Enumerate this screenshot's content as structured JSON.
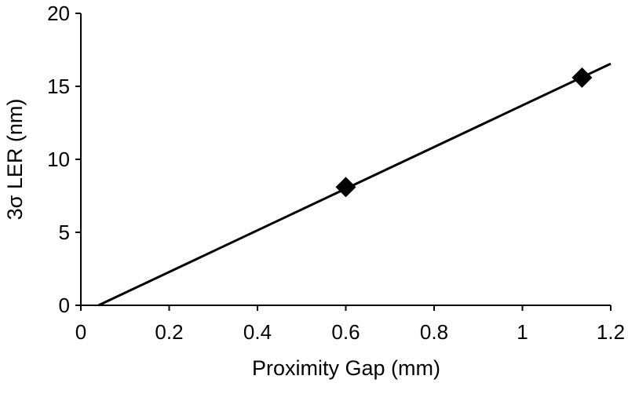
{
  "chart_data": {
    "type": "scatter",
    "title": "",
    "xlabel": "Proximity Gap (mm)",
    "ylabel": "3σ LER (nm)",
    "xlim": [
      0,
      1.2
    ],
    "ylim": [
      0,
      20
    ],
    "x_ticks": [
      "0",
      "0.2",
      "0.4",
      "0.6",
      "0.8",
      "1",
      "1.2"
    ],
    "y_ticks": [
      "0",
      "5",
      "10",
      "15",
      "20"
    ],
    "grid": false,
    "legend": "none",
    "series": [
      {
        "marker": "diamond",
        "color": "#000000",
        "points": [
          {
            "x": 0.6,
            "y": 8.1
          },
          {
            "x": 1.135,
            "y": 15.6
          }
        ]
      }
    ],
    "trendline": {
      "type": "linear",
      "from": {
        "x": 0.04,
        "y": 0
      },
      "to": {
        "x": 1.2,
        "y": 16.55
      },
      "color": "#000000"
    }
  }
}
